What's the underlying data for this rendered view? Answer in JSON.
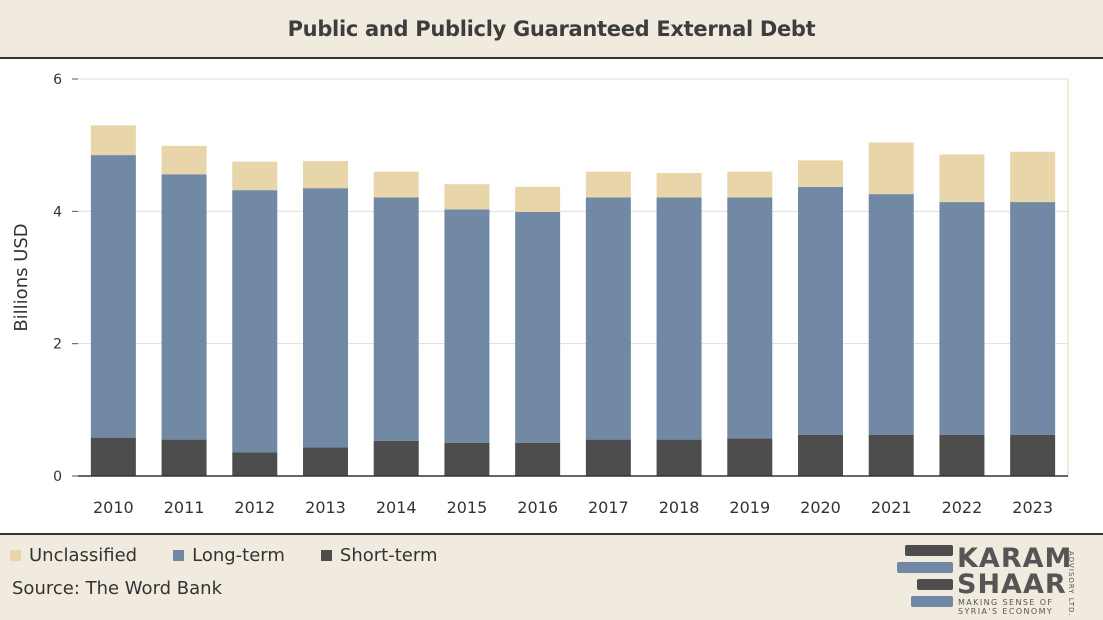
{
  "chart_data": {
    "type": "bar",
    "stacked": true,
    "title": "Public and Publicly Guaranteed External Debt",
    "ylabel": "Billions USD",
    "xlabel": "",
    "ylim": [
      0,
      6
    ],
    "yticks": [
      0,
      2,
      4,
      6
    ],
    "grid": true,
    "legend_position": "bottom-left",
    "categories": [
      "2010",
      "2011",
      "2012",
      "2013",
      "2014",
      "2015",
      "2016",
      "2017",
      "2018",
      "2019",
      "2020",
      "2021",
      "2022",
      "2023"
    ],
    "series": [
      {
        "name": "Short-term",
        "color": "#4d4d4d",
        "values": [
          0.58,
          0.55,
          0.36,
          0.43,
          0.53,
          0.5,
          0.5,
          0.55,
          0.55,
          0.57,
          0.62,
          0.62,
          0.62,
          0.62
        ]
      },
      {
        "name": "Long-term",
        "color": "#7189a4",
        "values": [
          4.27,
          4.01,
          3.96,
          3.92,
          3.68,
          3.53,
          3.49,
          3.66,
          3.66,
          3.64,
          3.75,
          3.64,
          3.52,
          3.52
        ]
      },
      {
        "name": "Unclassified",
        "color": "#e8d5a9",
        "values": [
          0.45,
          0.43,
          0.43,
          0.41,
          0.39,
          0.38,
          0.38,
          0.39,
          0.37,
          0.39,
          0.4,
          0.78,
          0.72,
          0.76
        ]
      }
    ]
  },
  "legend": [
    {
      "label": "Unclassified",
      "color": "#e8d5a9"
    },
    {
      "label": "Long-term",
      "color": "#7189a4"
    },
    {
      "label": "Short-term",
      "color": "#4d4d4d"
    }
  ],
  "source": "Source: The Word Bank",
  "logo": {
    "line1": "KARAM",
    "line2": "SHAAR",
    "tagline1": "MAKING SENSE OF",
    "tagline2": "SYRIA'S ECONOMY",
    "side": "ADVISORY LTD."
  }
}
